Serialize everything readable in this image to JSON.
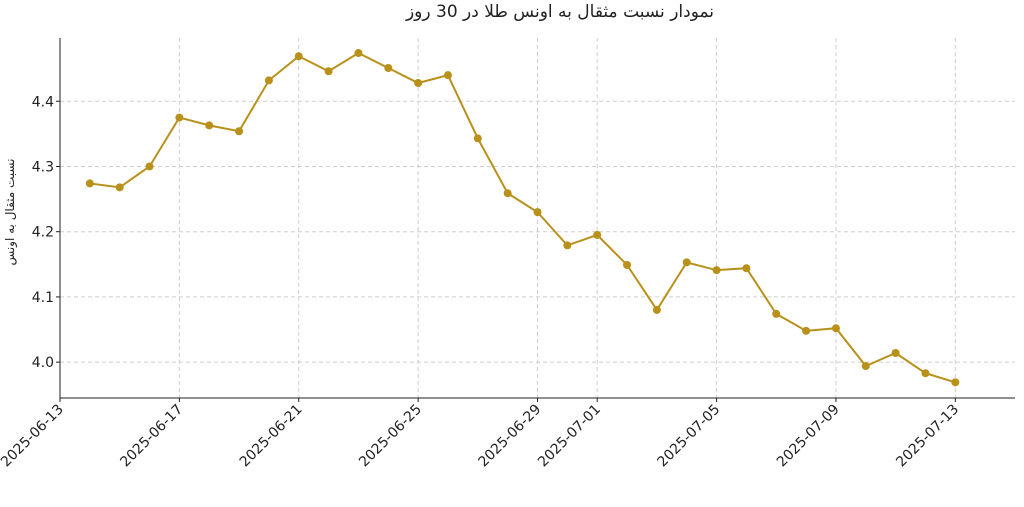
{
  "chart_data": {
    "type": "line",
    "title": "نمودار نسبت مثقال به اونس طلا در 30 روز",
    "y_label": "نسبت مثقال به اونس",
    "x": [
      "2025-06-14",
      "2025-06-15",
      "2025-06-16",
      "2025-06-17",
      "2025-06-18",
      "2025-06-19",
      "2025-06-20",
      "2025-06-21",
      "2025-06-22",
      "2025-06-23",
      "2025-06-24",
      "2025-06-25",
      "2025-06-26",
      "2025-06-27",
      "2025-06-28",
      "2025-06-29",
      "2025-06-30",
      "2025-07-01",
      "2025-07-02",
      "2025-07-03",
      "2025-07-04",
      "2025-07-05",
      "2025-07-06",
      "2025-07-07",
      "2025-07-08",
      "2025-07-09",
      "2025-07-10",
      "2025-07-11",
      "2025-07-12",
      "2025-07-13"
    ],
    "series": [
      {
        "name": "نسبت مثقال به اونس",
        "color": "#b8901a",
        "values": [
          4.274,
          4.268,
          4.3,
          4.375,
          4.363,
          4.354,
          4.432,
          4.469,
          4.446,
          4.474,
          4.451,
          4.428,
          4.44,
          4.343,
          4.259,
          4.23,
          4.179,
          4.195,
          4.149,
          4.08,
          4.153,
          4.141,
          4.144,
          4.074,
          4.048,
          4.052,
          3.994,
          4.014,
          3.983,
          3.969
        ]
      }
    ],
    "xlim": [
      "2025-06-13",
      "2025-07-15"
    ],
    "xticks": [
      "2025-06-13",
      "2025-06-17",
      "2025-06-21",
      "2025-06-25",
      "2025-06-29",
      "2025-07-01",
      "2025-07-05",
      "2025-07-09",
      "2025-07-13"
    ],
    "ylim": [
      3.945,
      4.497
    ],
    "yticks": [
      {
        "value": 4,
        "label": "4.0"
      },
      4.1,
      4.2,
      4.3,
      4.4
    ],
    "grid": true
  }
}
